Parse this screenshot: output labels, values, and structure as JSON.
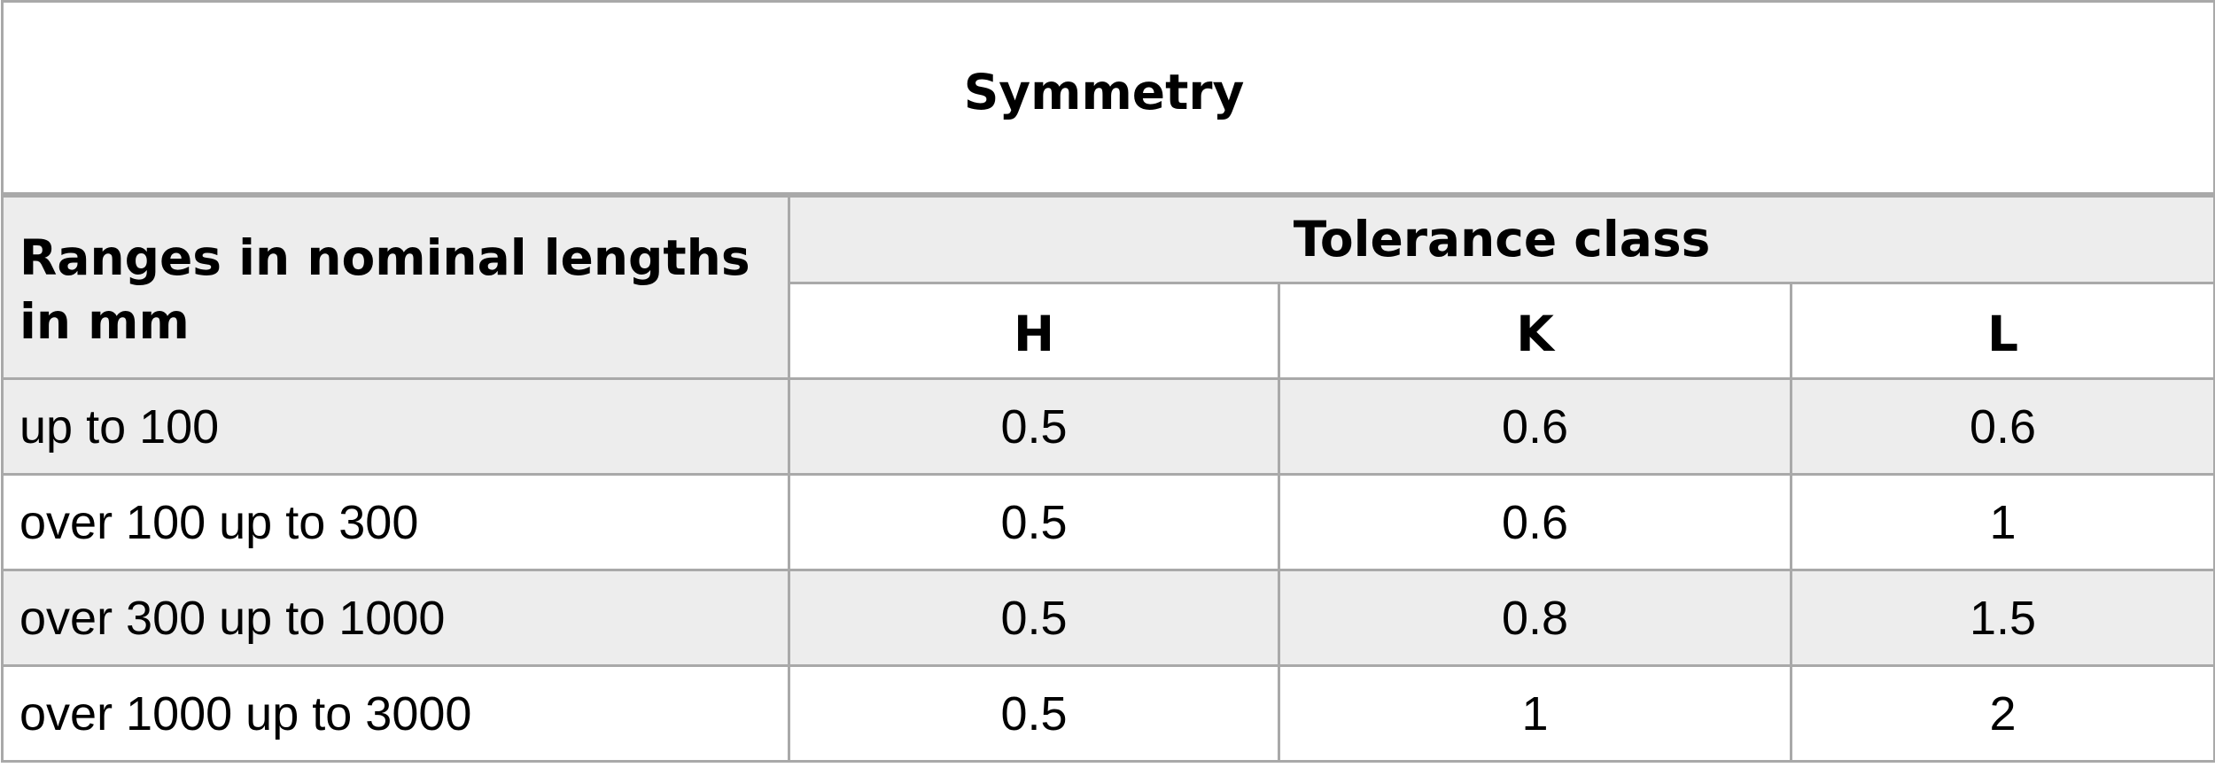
{
  "table": {
    "title": "Symmetry",
    "range_header": "Ranges in nominal lengths in mm",
    "group_header": "Tolerance class",
    "classes": [
      "H",
      "K",
      "L"
    ],
    "rows": [
      {
        "range": "up to 100",
        "values": [
          "0.5",
          "0.6",
          "0.6"
        ]
      },
      {
        "range": "over 100 up to 300",
        "values": [
          "0.5",
          "0.6",
          "1"
        ]
      },
      {
        "range": "over 300 up to 1000",
        "values": [
          "0.5",
          "0.8",
          "1.5"
        ]
      },
      {
        "range": "over 1000 up to 3000",
        "values": [
          "0.5",
          "1",
          "2"
        ]
      }
    ]
  },
  "colors": {
    "border": "#a9a9a9",
    "shaded_background": "#ededed",
    "plain_background": "#ffffff",
    "text": "#000000"
  }
}
